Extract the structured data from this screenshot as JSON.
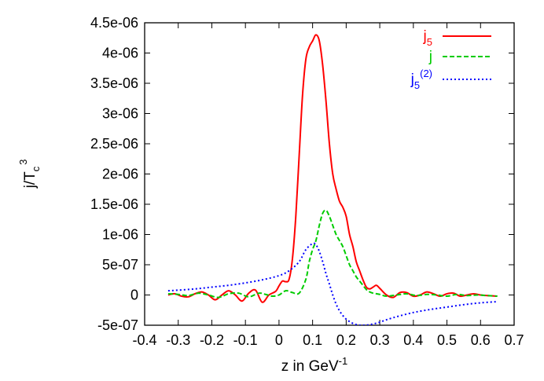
{
  "chart_data": {
    "type": "line",
    "xlabel": "z in GeV",
    "xlabel_sup": "-1",
    "ylabel": "j/T",
    "ylabel_sub": "c",
    "ylabel_sup": "3",
    "xlim": [
      -0.4,
      0.7
    ],
    "ylim": [
      -5e-07,
      4.5e-06
    ],
    "x_ticks": [
      -0.4,
      -0.3,
      -0.2,
      -0.1,
      0,
      0.1,
      0.2,
      0.3,
      0.4,
      0.5,
      0.6,
      0.7
    ],
    "x_tick_labels": [
      "-0.4",
      "-0.3",
      "-0.2",
      "-0.1",
      "0",
      "0.1",
      "0.2",
      "0.3",
      "0.4",
      "0.5",
      "0.6",
      "0.7"
    ],
    "y_ticks": [
      -5e-07,
      0,
      5e-07,
      1e-06,
      1.5e-06,
      2e-06,
      2.5e-06,
      3e-06,
      3.5e-06,
      4e-06,
      4.5e-06
    ],
    "y_tick_labels": [
      "-5e-07",
      "0",
      "5e-07",
      "1e-06",
      "1.5e-06",
      "2e-06",
      "2.5e-06",
      "3e-06",
      "3.5e-06",
      "4e-06",
      "4.5e-06"
    ],
    "grid": false,
    "legend_position": "top-right",
    "series": [
      {
        "name": "j",
        "name_sub": "5",
        "name_sup": "",
        "color": "#ff0000",
        "dash": "solid",
        "x": [
          -0.33,
          -0.31,
          -0.29,
          -0.27,
          -0.25,
          -0.23,
          -0.21,
          -0.19,
          -0.17,
          -0.15,
          -0.13,
          -0.11,
          -0.09,
          -0.07,
          -0.05,
          -0.03,
          -0.01,
          0.0,
          0.01,
          0.02,
          0.03,
          0.04,
          0.05,
          0.06,
          0.07,
          0.08,
          0.09,
          0.1,
          0.11,
          0.12,
          0.13,
          0.14,
          0.15,
          0.16,
          0.17,
          0.18,
          0.19,
          0.2,
          0.21,
          0.22,
          0.23,
          0.24,
          0.25,
          0.26,
          0.27,
          0.28,
          0.29,
          0.3,
          0.32,
          0.34,
          0.36,
          0.38,
          0.4,
          0.42,
          0.44,
          0.46,
          0.48,
          0.5,
          0.52,
          0.54,
          0.56,
          0.58,
          0.6,
          0.62,
          0.65
        ],
        "y": [
          0,
          2e-08,
          -2e-08,
          -3e-08,
          2e-08,
          5e-08,
          0,
          -8e-08,
          0,
          7e-08,
          0,
          -1e-07,
          3e-08,
          8e-08,
          -1.2e-07,
          0,
          6e-08,
          1.5e-07,
          2.3e-07,
          2.2e-07,
          2.6e-07,
          6e-07,
          1.3e-06,
          2.3e-06,
          3.3e-06,
          3.9e-06,
          4.1e-06,
          4.2e-06,
          4.3e-06,
          4.2e-06,
          3.8e-06,
          3.2e-06,
          2.5e-06,
          2e-06,
          1.75e-06,
          1.55e-06,
          1.45e-06,
          1.3e-06,
          1e-06,
          8e-07,
          5.5e-07,
          4e-07,
          2.5e-07,
          1.3e-07,
          1e-07,
          1.3e-07,
          1.6e-07,
          1.1e-07,
          0,
          -4e-08,
          4e-08,
          4e-08,
          -2e-08,
          0,
          5e-08,
          2e-08,
          -2e-08,
          2e-08,
          3e-08,
          -2e-08,
          0,
          2e-08,
          0,
          -1e-08,
          -2e-08
        ]
      },
      {
        "name": "j",
        "name_sub": "",
        "name_sup": "",
        "color": "#00cc00",
        "dash": "6,3",
        "x": [
          -0.33,
          -0.3,
          -0.27,
          -0.24,
          -0.21,
          -0.18,
          -0.15,
          -0.12,
          -0.09,
          -0.06,
          -0.04,
          -0.02,
          0.0,
          0.02,
          0.04,
          0.06,
          0.08,
          0.09,
          0.1,
          0.11,
          0.12,
          0.13,
          0.14,
          0.15,
          0.16,
          0.17,
          0.18,
          0.19,
          0.2,
          0.21,
          0.22,
          0.23,
          0.24,
          0.25,
          0.26,
          0.27,
          0.28,
          0.3,
          0.32,
          0.35,
          0.38,
          0.41,
          0.44,
          0.47,
          0.5,
          0.53,
          0.56,
          0.59,
          0.62,
          0.65
        ],
        "y": [
          2e-08,
          1e-08,
          -1e-08,
          3e-08,
          0,
          -4e-08,
          2e-08,
          3e-08,
          -3e-08,
          3e-08,
          1e-08,
          -2e-08,
          0,
          7e-08,
          4e-08,
          3e-08,
          2.6e-07,
          5.5e-07,
          7.5e-07,
          9e-07,
          1.15e-06,
          1.35e-06,
          1.4e-06,
          1.3e-06,
          1.15e-06,
          1e-06,
          9e-07,
          8e-07,
          6.5e-07,
          5e-07,
          4e-07,
          3e-07,
          2.3e-07,
          1.6e-07,
          9e-08,
          5e-08,
          3e-08,
          1e-08,
          -2e-08,
          0,
          2e-08,
          -1e-08,
          1e-08,
          0,
          -2e-08,
          1e-08,
          -1e-08,
          0,
          -1e-08,
          -2e-08
        ]
      },
      {
        "name": "j",
        "name_sub": "5",
        "name_sup": "(2)",
        "color": "#0000ff",
        "dash": "2,3",
        "x": [
          -0.33,
          -0.3,
          -0.25,
          -0.2,
          -0.15,
          -0.1,
          -0.05,
          0.0,
          0.03,
          0.06,
          0.08,
          0.1,
          0.11,
          0.12,
          0.13,
          0.14,
          0.15,
          0.16,
          0.17,
          0.18,
          0.19,
          0.2,
          0.21,
          0.22,
          0.23,
          0.24,
          0.25,
          0.26,
          0.27,
          0.28,
          0.3,
          0.32,
          0.35,
          0.4,
          0.45,
          0.5,
          0.55,
          0.6,
          0.65
        ],
        "y": [
          7e-08,
          8e-08,
          1e-07,
          1.3e-07,
          1.6e-07,
          2e-07,
          2.5e-07,
          3.2e-07,
          4e-07,
          5.5e-07,
          7.5e-07,
          8.5e-07,
          8.3e-07,
          7.2e-07,
          5.5e-07,
          3.5e-07,
          1.8e-07,
          0,
          -1.5e-07,
          -2.6e-07,
          -3.4e-07,
          -4e-07,
          -4.4e-07,
          -4.7e-07,
          -4.9e-07,
          -5e-07,
          -5e-07,
          -5e-07,
          -4.9e-07,
          -4.8e-07,
          -4.5e-07,
          -4.1e-07,
          -3.6e-07,
          -2.9e-07,
          -2.4e-07,
          -2e-07,
          -1.6e-07,
          -1.3e-07,
          -1.1e-07
        ]
      }
    ]
  }
}
